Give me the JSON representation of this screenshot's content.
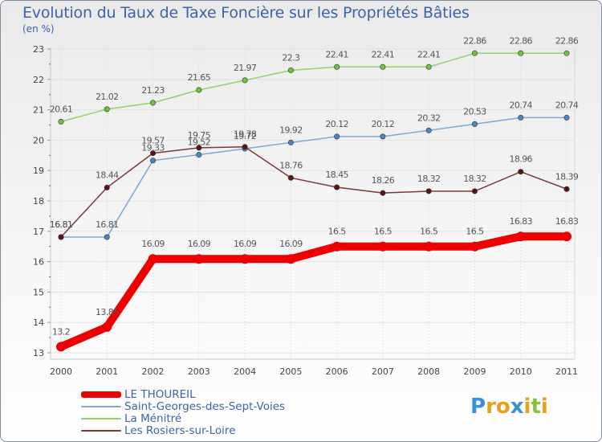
{
  "header": {
    "title": "Evolution du Taux de Taxe Foncière sur les Propriétés Bâties",
    "unit": "(en %)"
  },
  "chart_data": {
    "type": "line",
    "title": "Evolution du Taux de Taxe Foncière sur les Propriétés Bâties",
    "ylabel": "(en %)",
    "xlabel": "",
    "x": [
      "2000",
      "2001",
      "2002",
      "2003",
      "2004",
      "2005",
      "2006",
      "2007",
      "2008",
      "2009",
      "2010",
      "2011"
    ],
    "ylim": [
      13,
      23
    ],
    "yticks": [
      "13",
      "14",
      "15",
      "16",
      "17",
      "18",
      "19",
      "20",
      "21",
      "22",
      "23"
    ],
    "grid": true,
    "legend": "bottom-left",
    "series": [
      {
        "name": "La Ménitré",
        "color": "#8fd16a",
        "dot": "#6cc33c",
        "values": [
          20.61,
          21.02,
          21.23,
          21.65,
          21.97,
          22.3,
          22.41,
          22.41,
          22.41,
          22.86,
          22.86,
          22.86
        ],
        "labels": [
          "20.61",
          "21.02",
          "21.23",
          "21.65",
          "21.97",
          "22.3",
          "22.41",
          "22.41",
          "22.41",
          "22.86",
          "22.86",
          "22.86"
        ]
      },
      {
        "name": "Saint-Georges-des-Sept-Voies",
        "color": "#7fa6d4",
        "dot": "#4a86c6",
        "values": [
          16.81,
          16.81,
          19.33,
          19.52,
          19.72,
          19.92,
          20.12,
          20.12,
          20.32,
          20.53,
          20.74,
          20.74
        ],
        "labels": [
          "16.81",
          "16.81",
          "19.33",
          "19.52",
          "19.72",
          "19.92",
          "20.12",
          "20.12",
          "20.32",
          "20.53",
          "20.74",
          "20.74"
        ]
      },
      {
        "name": "Les Rosiers-sur-Loire",
        "color": "#7a3a3a",
        "dot": "#5a1414",
        "values": [
          16.81,
          18.44,
          19.57,
          19.75,
          19.78,
          18.76,
          18.45,
          18.26,
          18.32,
          18.32,
          18.96,
          18.39
        ],
        "labels": [
          "16.81",
          "18.44",
          "19.57",
          "19.75",
          "19.78",
          "18.76",
          "18.45",
          "18.26",
          "18.32",
          "18.32",
          "18.96",
          "18.39"
        ]
      },
      {
        "name": "LE THOUREIL",
        "color": "#ee0000",
        "dot": "#ee0000",
        "values": [
          13.2,
          13.85,
          16.09,
          16.09,
          16.09,
          16.09,
          16.5,
          16.5,
          16.5,
          16.5,
          16.83,
          16.83
        ],
        "labels": [
          "13.2",
          "13.85",
          "16.09",
          "16.09",
          "16.09",
          "16.09",
          "16.5",
          "16.5",
          "16.5",
          "16.5",
          "16.83",
          "16.83"
        ]
      }
    ]
  },
  "legend": {
    "items": [
      {
        "label": "LE THOUREIL",
        "color": "#ee0000"
      },
      {
        "label": "Saint-Georges-des-Sept-Voies",
        "color": "#7fa6d4"
      },
      {
        "label": "La Ménitré",
        "color": "#8fd16a"
      },
      {
        "label": "Les Rosiers-sur-Loire",
        "color": "#7a3a3a"
      }
    ]
  },
  "logo": {
    "text": "Proxiti",
    "letters": [
      "P",
      "r",
      "o",
      "x",
      "i",
      "t",
      "i"
    ],
    "colors": [
      "#3a8fd8",
      "#e8a020",
      "#e8a020",
      "#3a8fd8",
      "#e8a020",
      "#8ac040",
      "#e8a020"
    ]
  }
}
